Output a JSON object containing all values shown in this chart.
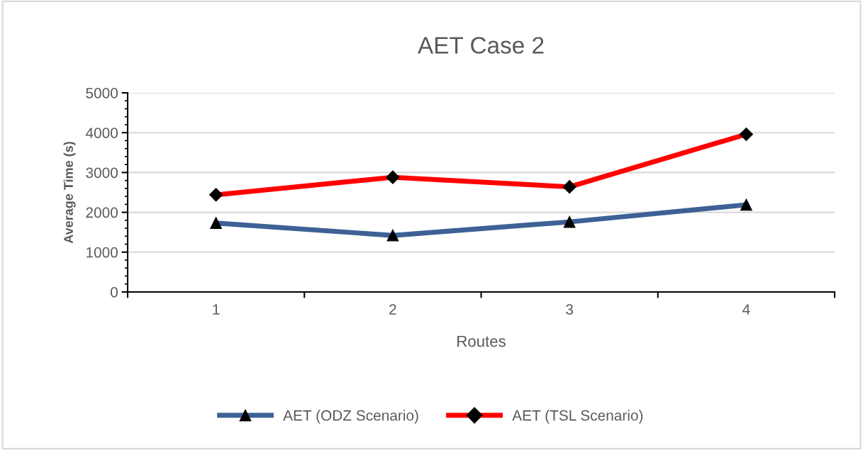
{
  "chart_data": {
    "type": "line",
    "title": "AET Case 2",
    "xlabel": "Routes",
    "ylabel": "Average Time (s)",
    "categories": [
      "1",
      "2",
      "3",
      "4"
    ],
    "series": [
      {
        "name": "AET (ODZ Scenario)",
        "color": "#3d6195",
        "values": [
          1730,
          1420,
          1760,
          2190
        ],
        "marker": "triangle"
      },
      {
        "name": "AET (TSL Scenario)",
        "color": "#ff0000",
        "values": [
          2440,
          2880,
          2640,
          3960
        ],
        "marker": "diamond"
      }
    ],
    "ylim": [
      0,
      5000
    ],
    "yticks": [
      0,
      1000,
      2000,
      3000,
      4000,
      5000
    ],
    "grid": "y",
    "legend": "bottom",
    "line_style": "solid"
  }
}
